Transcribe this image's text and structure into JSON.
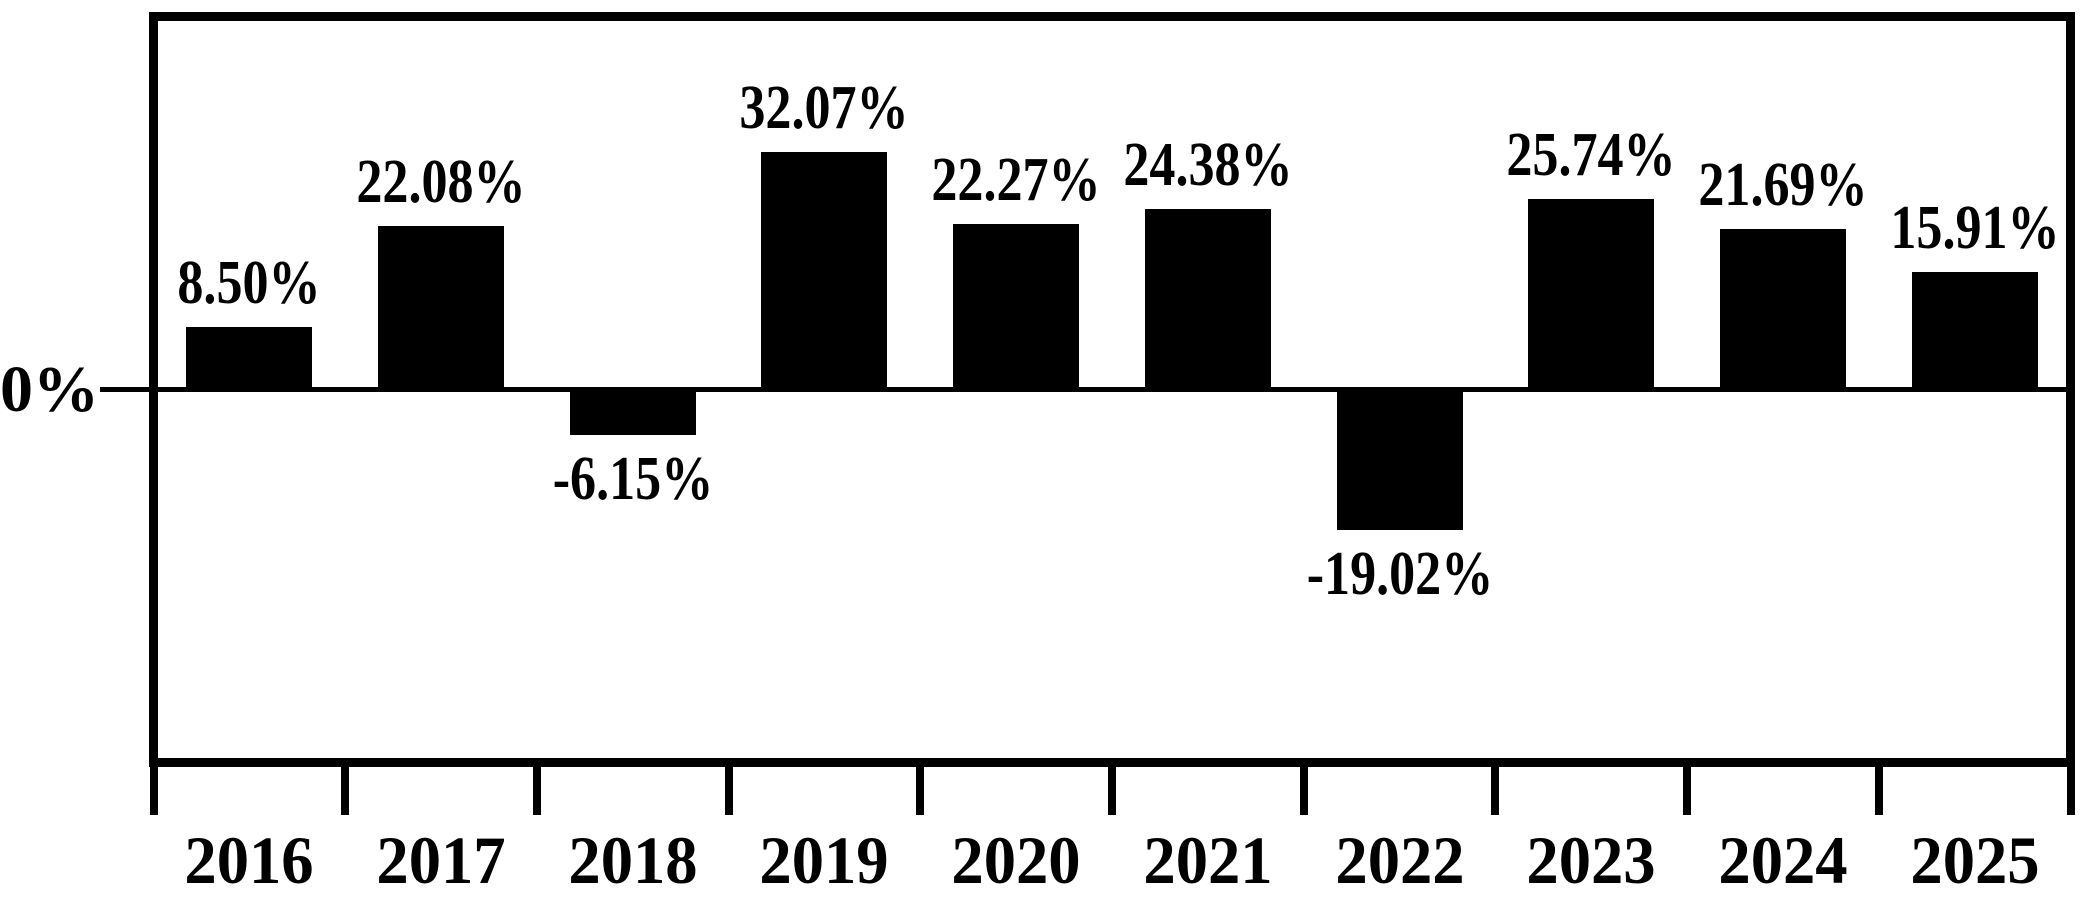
{
  "chart_data": {
    "type": "bar",
    "title": "",
    "xlabel": "",
    "ylabel": "",
    "categories": [
      "2016",
      "2017",
      "2018",
      "2019",
      "2020",
      "2021",
      "2022",
      "2023",
      "2024",
      "2025"
    ],
    "values": [
      8.5,
      22.08,
      -6.15,
      32.07,
      22.27,
      24.38,
      -19.02,
      25.74,
      21.69,
      15.91
    ],
    "value_labels": [
      "8.50%",
      "22.08%",
      "-6.15%",
      "32.07%",
      "22.27%",
      "24.38%",
      "-19.02%",
      "25.74%",
      "21.69%",
      "15.91%"
    ],
    "zero_tick_label": "0%",
    "ylim": [
      -50,
      50
    ],
    "grid": false,
    "legend": false,
    "bar_color": "#000000",
    "axis_color": "#000000",
    "background_color": "#ffffff"
  }
}
